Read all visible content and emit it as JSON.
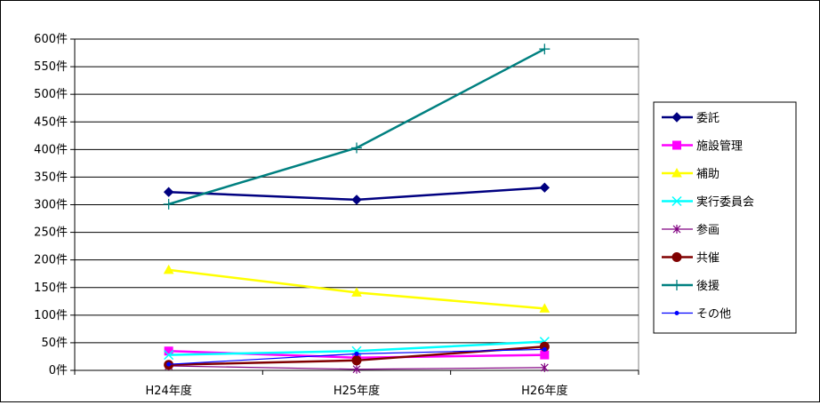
{
  "chart_data": {
    "type": "line",
    "categories": [
      "H24年度",
      "H25年度",
      "H26年度"
    ],
    "y_ticks": [
      "0件",
      "50件",
      "100件",
      "150件",
      "200件",
      "250件",
      "300件",
      "350件",
      "400件",
      "450件",
      "500件",
      "550件",
      "600件"
    ],
    "ylim": [
      0,
      600
    ],
    "grid": true,
    "legend_position": "right",
    "series": [
      {
        "name": "委託",
        "values": [
          323,
          309,
          331
        ],
        "color": "#000080",
        "marker": "diamond"
      },
      {
        "name": "施設管理",
        "values": [
          35,
          23,
          28
        ],
        "color": "#FF00FF",
        "marker": "square"
      },
      {
        "name": "補助",
        "values": [
          182,
          141,
          112
        ],
        "color": "#FFFF00",
        "marker": "triangle"
      },
      {
        "name": "実行委員会",
        "values": [
          28,
          35,
          52
        ],
        "color": "#00FFFF",
        "marker": "x"
      },
      {
        "name": "参画",
        "values": [
          8,
          2,
          5
        ],
        "color": "#800080",
        "marker": "star"
      },
      {
        "name": "共催",
        "values": [
          10,
          18,
          43
        ],
        "color": "#800000",
        "marker": "circle"
      },
      {
        "name": "後援",
        "values": [
          301,
          403,
          582
        ],
        "color": "#008080",
        "marker": "plus"
      },
      {
        "name": "その他",
        "values": [
          11,
          30,
          38
        ],
        "color": "#0000FF",
        "marker": "dot"
      }
    ]
  }
}
